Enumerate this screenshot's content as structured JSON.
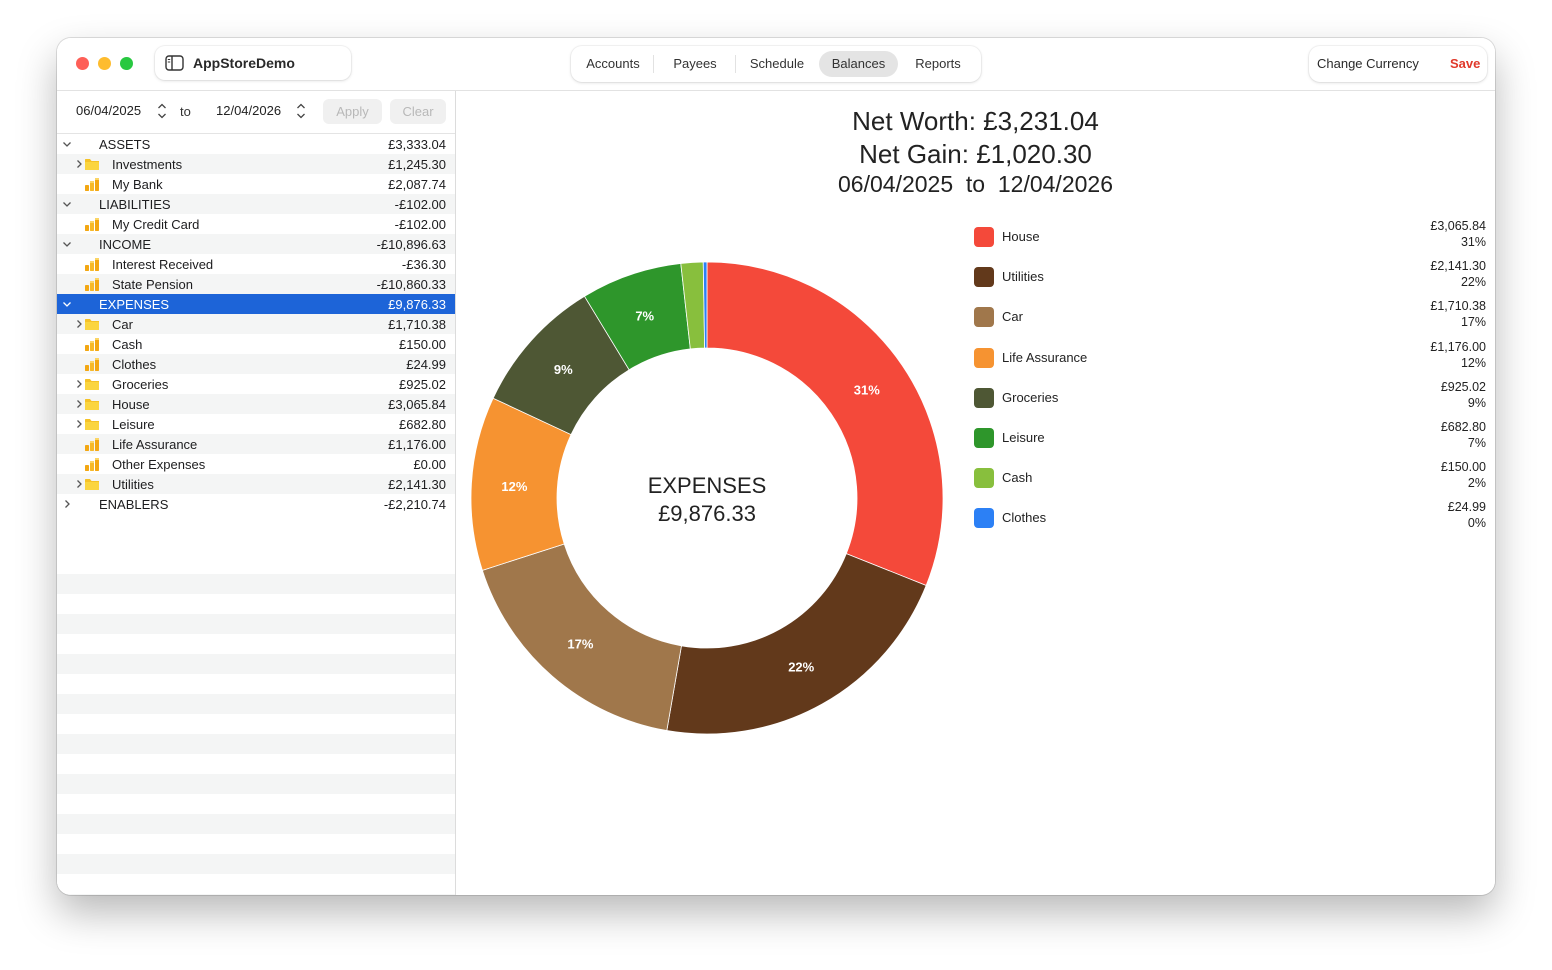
{
  "app": {
    "title": "AppStoreDemo"
  },
  "nav": {
    "tabs": [
      "Accounts",
      "Payees",
      "Schedule",
      "Balances",
      "Reports"
    ],
    "active": "Balances"
  },
  "actions": {
    "change_currency": "Change Currency",
    "save": "Save"
  },
  "date_filter": {
    "from": "06/04/2025",
    "to_label": "to",
    "to": "12/04/2026",
    "apply": "Apply",
    "clear": "Clear"
  },
  "tree": [
    {
      "label": "ASSETS",
      "amount": "£3,333.04",
      "level": 0,
      "chevron": "down"
    },
    {
      "label": "Investments",
      "amount": "£1,245.30",
      "level": 1,
      "chevron": "right",
      "icon": "folder"
    },
    {
      "label": "My Bank",
      "amount": "£2,087.74",
      "level": 1,
      "chevron": "",
      "icon": "coins"
    },
    {
      "label": "LIABILITIES",
      "amount": "-£102.00",
      "level": 0,
      "chevron": "down"
    },
    {
      "label": "My Credit Card",
      "amount": "-£102.00",
      "level": 1,
      "chevron": "",
      "icon": "coins"
    },
    {
      "label": "INCOME",
      "amount": "-£10,896.63",
      "level": 0,
      "chevron": "down"
    },
    {
      "label": "Interest Received",
      "amount": "-£36.30",
      "level": 1,
      "chevron": "",
      "icon": "coins"
    },
    {
      "label": "State Pension",
      "amount": "-£10,860.33",
      "level": 1,
      "chevron": "",
      "icon": "coins"
    },
    {
      "label": "EXPENSES",
      "amount": "£9,876.33",
      "level": 0,
      "chevron": "down",
      "selected": true
    },
    {
      "label": "Car",
      "amount": "£1,710.38",
      "level": 1,
      "chevron": "right",
      "icon": "folder"
    },
    {
      "label": "Cash",
      "amount": "£150.00",
      "level": 1,
      "chevron": "",
      "icon": "coins"
    },
    {
      "label": "Clothes",
      "amount": "£24.99",
      "level": 1,
      "chevron": "",
      "icon": "coins"
    },
    {
      "label": "Groceries",
      "amount": "£925.02",
      "level": 1,
      "chevron": "right",
      "icon": "folder"
    },
    {
      "label": "House",
      "amount": "£3,065.84",
      "level": 1,
      "chevron": "right",
      "icon": "folder"
    },
    {
      "label": "Leisure",
      "amount": "£682.80",
      "level": 1,
      "chevron": "right",
      "icon": "folder"
    },
    {
      "label": "Life Assurance",
      "amount": "£1,176.00",
      "level": 1,
      "chevron": "",
      "icon": "coins"
    },
    {
      "label": "Other Expenses",
      "amount": "£0.00",
      "level": 1,
      "chevron": "",
      "icon": "coins"
    },
    {
      "label": "Utilities",
      "amount": "£2,141.30",
      "level": 1,
      "chevron": "right",
      "icon": "folder"
    },
    {
      "label": "ENABLERS",
      "amount": "-£2,210.74",
      "level": 0,
      "chevron": "right"
    }
  ],
  "summary": {
    "net_worth": "Net Worth: £3,231.04",
    "net_gain": "Net Gain: £1,020.30",
    "period": "06/04/2025  to  12/04/2026"
  },
  "chart_data": {
    "type": "pie",
    "style": "donut",
    "center_label": "EXPENSES",
    "center_value": "£9,876.33",
    "series": [
      {
        "name": "House",
        "value": 3065.84,
        "amount": "£3,065.84",
        "pct": "31%",
        "color": "#f4493a"
      },
      {
        "name": "Utilities",
        "value": 2141.3,
        "amount": "£2,141.30",
        "pct": "22%",
        "color": "#62391b"
      },
      {
        "name": "Car",
        "value": 1710.38,
        "amount": "£1,710.38",
        "pct": "17%",
        "color": "#a0774b"
      },
      {
        "name": "Life Assurance",
        "value": 1176.0,
        "amount": "£1,176.00",
        "pct": "12%",
        "color": "#f69331"
      },
      {
        "name": "Groceries",
        "value": 925.02,
        "amount": "£925.02",
        "pct": "9%",
        "color": "#4e5734"
      },
      {
        "name": "Leisure",
        "value": 682.8,
        "amount": "£682.80",
        "pct": "7%",
        "color": "#2e962b"
      },
      {
        "name": "Cash",
        "value": 150.0,
        "amount": "£150.00",
        "pct": "2%",
        "color": "#88bf3d"
      },
      {
        "name": "Clothes",
        "value": 24.99,
        "amount": "£24.99",
        "pct": "0%",
        "color": "#2c80f5"
      }
    ],
    "legend_position": "right"
  }
}
